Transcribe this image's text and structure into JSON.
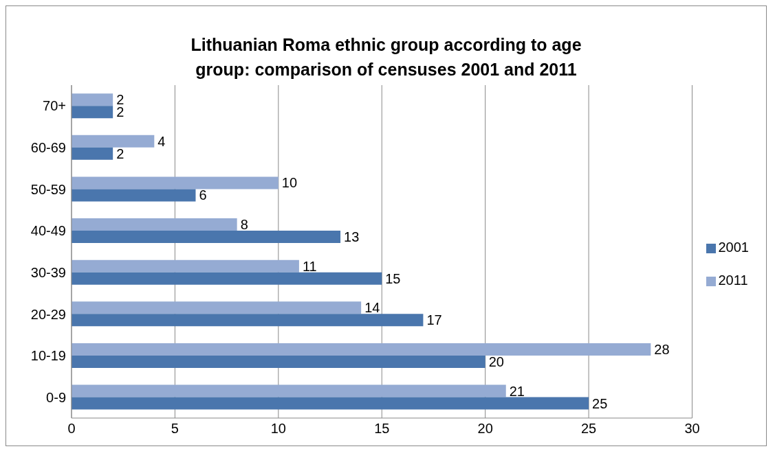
{
  "chart_data": {
    "type": "bar",
    "orientation": "horizontal",
    "title": "Lithuanian Roma ethnic group according to age group: comparison of censuses 2001 and 2011",
    "categories": [
      "70+",
      "60-69",
      "50-59",
      "40-49",
      "30-39",
      "20-29",
      "10-19",
      "0-9"
    ],
    "series": [
      {
        "name": "2011",
        "color": "#95abd3",
        "values": [
          2,
          4,
          10,
          8,
          11,
          14,
          28,
          21
        ]
      },
      {
        "name": "2001",
        "color": "#4a76ad",
        "values": [
          2,
          2,
          6,
          13,
          15,
          17,
          20,
          25
        ]
      }
    ],
    "xlim": [
      0,
      30
    ],
    "xticks": [
      0,
      5,
      10,
      15,
      20,
      25,
      30
    ],
    "grid": "x",
    "legend": "right",
    "data_labels": true
  }
}
